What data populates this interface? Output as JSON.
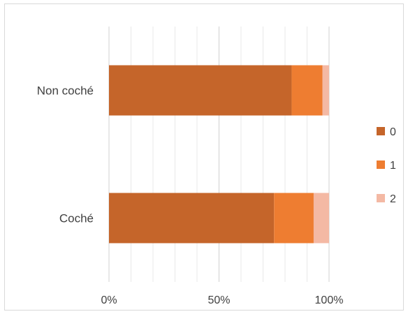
{
  "chart_data": {
    "type": "bar",
    "orientation": "horizontal",
    "stacking": "percent",
    "categories": [
      "Non coché",
      "Coché"
    ],
    "series": [
      {
        "name": "0",
        "color": "#c5652a",
        "values": [
          83,
          75
        ]
      },
      {
        "name": "1",
        "color": "#ee7d31",
        "values": [
          14,
          18
        ]
      },
      {
        "name": "2",
        "color": "#f4b9a4",
        "values": [
          3,
          7
        ]
      }
    ],
    "xlim": [
      0,
      100
    ],
    "xticks": [
      0,
      50,
      100
    ],
    "xtick_labels": [
      "0%",
      "50%",
      "100%"
    ],
    "grid": true,
    "legend": "right"
  }
}
